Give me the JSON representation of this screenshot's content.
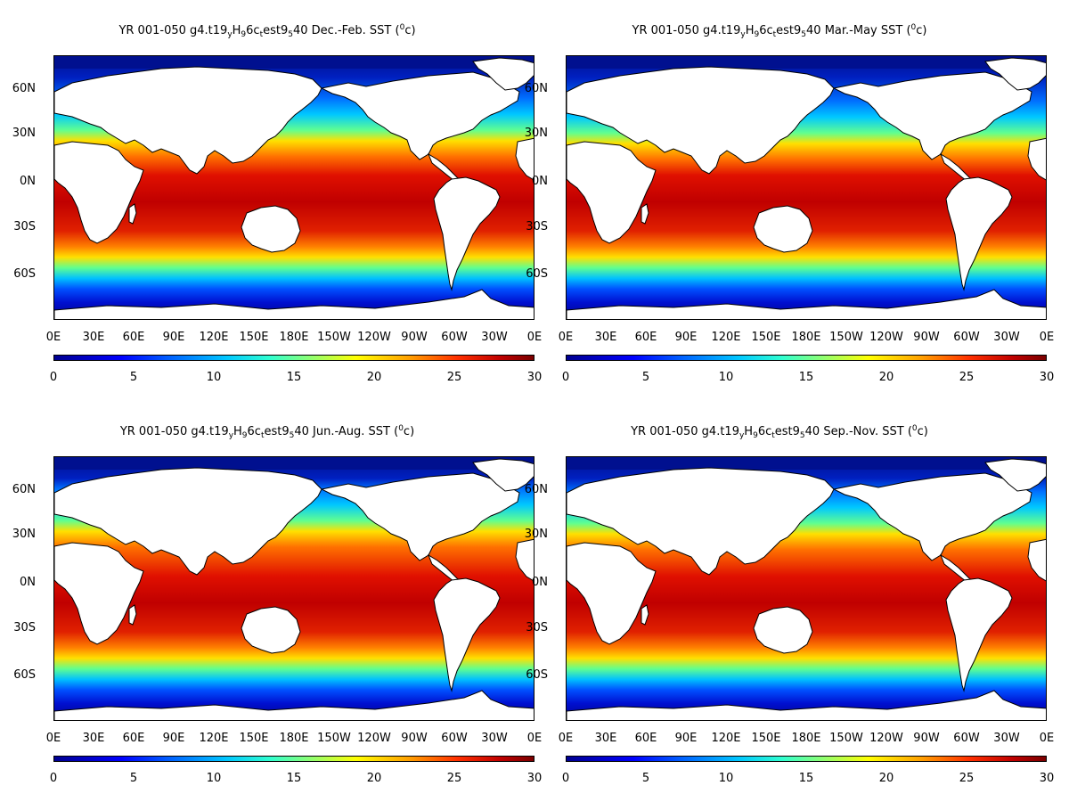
{
  "panels": [
    {
      "title_parts": {
        "pre": "YR 001-050 g4.t19",
        "s1": "y",
        "m1": "H",
        "s2": "9",
        "m2": "6c",
        "s3": "t",
        "m3": "est9",
        "s4": "5",
        "post": "40 Dec.-Feb. SST (",
        "sup": "0",
        "end": "c)"
      },
      "season": "Dec.-Feb."
    },
    {
      "title_parts": {
        "pre": "YR 001-050 g4.t19",
        "s1": "y",
        "m1": "H",
        "s2": "9",
        "m2": "6c",
        "s3": "t",
        "m3": "est9",
        "s4": "5",
        "post": "40 Mar.-May SST (",
        "sup": "0",
        "end": "c)"
      },
      "season": "Mar.-May"
    },
    {
      "title_parts": {
        "pre": "YR 001-050 g4.t19",
        "s1": "y",
        "m1": "H",
        "s2": "9",
        "m2": "6c",
        "s3": "t",
        "m3": "est9",
        "s4": "5",
        "post": "40 Jun.-Aug. SST (",
        "sup": "0",
        "end": "c)"
      },
      "season": "Jun.-Aug."
    },
    {
      "title_parts": {
        "pre": "YR 001-050 g4.t19",
        "s1": "y",
        "m1": "H",
        "s2": "9",
        "m2": "6c",
        "s3": "t",
        "m3": "est9",
        "s4": "5",
        "post": "40 Sep.-Nov. SST (",
        "sup": "0",
        "end": "c)"
      },
      "season": "Sep.-Nov."
    }
  ],
  "lat_labels": [
    "60N",
    "30N",
    "0N",
    "30S",
    "60S"
  ],
  "lon_labels": [
    "0E",
    "30E",
    "60E",
    "90E",
    "120E",
    "150E",
    "180E",
    "150W",
    "120W",
    "90W",
    "60W",
    "30W",
    "0E"
  ],
  "colorbar": {
    "labels": [
      "0",
      "5",
      "10",
      "15",
      "20",
      "25",
      "30"
    ],
    "min": 0,
    "max": 30
  },
  "colors": {
    "land": "#ffffff",
    "polar": "#00108f",
    "coast": "#000000"
  }
}
